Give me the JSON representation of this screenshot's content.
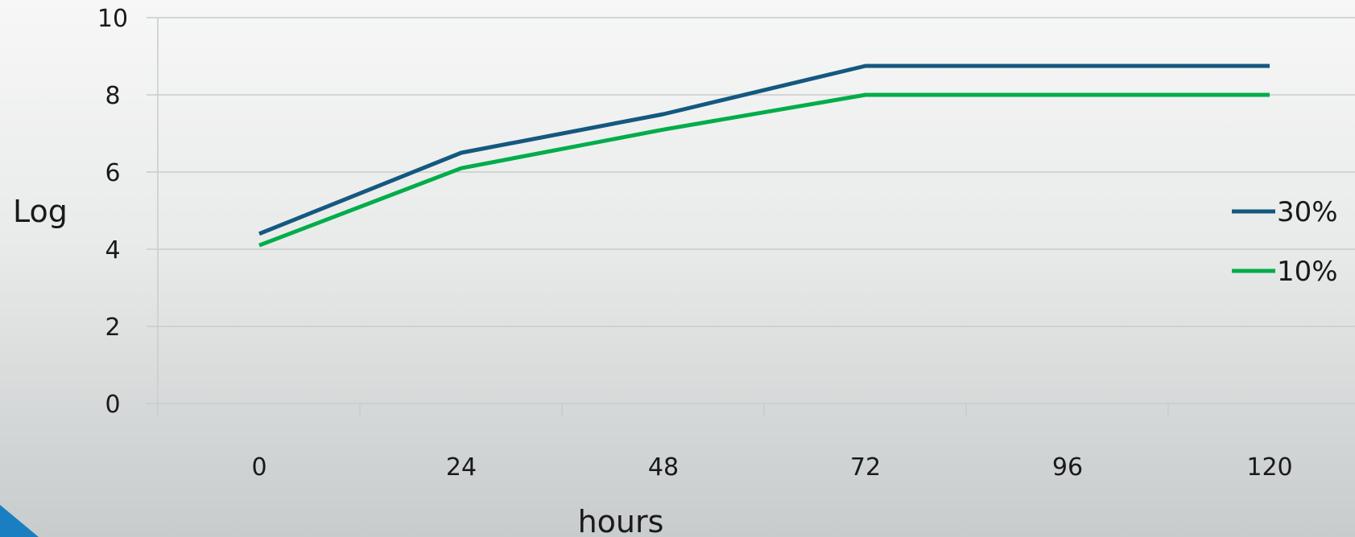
{
  "chart_data": {
    "type": "line",
    "title": "",
    "xlabel": "hours",
    "ylabel": "Log",
    "categories": [
      "0",
      "24",
      "48",
      "72",
      "96",
      "120"
    ],
    "x": [
      0,
      24,
      48,
      72,
      96,
      120
    ],
    "ylim": [
      0,
      10
    ],
    "yticks": [
      "0",
      "2",
      "4",
      "6",
      "8",
      "10"
    ],
    "grid": true,
    "legend_position": "right",
    "series": [
      {
        "name": "30%",
        "color": "#14587f",
        "values": [
          4.4,
          6.5,
          7.5,
          8.75,
          8.75,
          8.75
        ]
      },
      {
        "name": "10%",
        "color": "#00ad4b",
        "values": [
          4.1,
          6.1,
          7.1,
          8.0,
          8.0,
          8.0
        ]
      }
    ]
  },
  "colors": {
    "gridline": "#c9cccc",
    "corner_accent": "#1a7fc0"
  }
}
